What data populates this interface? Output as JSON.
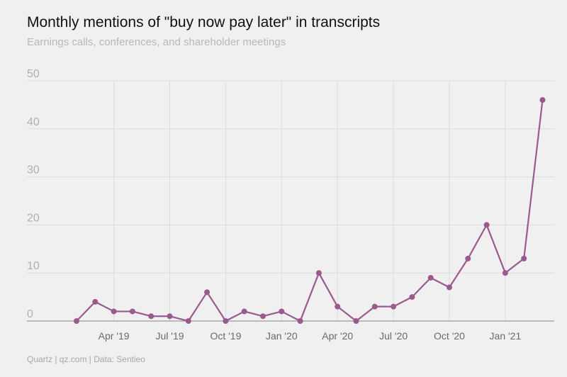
{
  "header": {
    "title": "Monthly mentions of \"buy now pay later\" in transcripts",
    "subtitle": "Earnings calls, conferences, and shareholder meetings"
  },
  "footer": {
    "credit": "Quartz | qz.com | Data: Sentieo"
  },
  "colors": {
    "line": "#9b5a8e",
    "grid": "#dcdcdc",
    "axis": "#999999",
    "background": "#f0f0f0"
  },
  "chart_data": {
    "type": "line",
    "title": "Monthly mentions of \"buy now pay later\" in transcripts",
    "subtitle": "Earnings calls, conferences, and shareholder meetings",
    "xlabel": "",
    "ylabel": "",
    "ylim": [
      0,
      50
    ],
    "yticks": [
      0,
      10,
      20,
      30,
      40,
      50
    ],
    "grid": true,
    "x": [
      "2019-02",
      "2019-03",
      "2019-04",
      "2019-05",
      "2019-06",
      "2019-07",
      "2019-08",
      "2019-09",
      "2019-10",
      "2019-11",
      "2019-12",
      "2020-01",
      "2020-02",
      "2020-03",
      "2020-04",
      "2020-05",
      "2020-06",
      "2020-07",
      "2020-08",
      "2020-09",
      "2020-10",
      "2020-11",
      "2020-12",
      "2021-01",
      "2021-02",
      "2021-03"
    ],
    "xtick_labels": [
      {
        "x": "2019-04",
        "label": "Apr '19"
      },
      {
        "x": "2019-07",
        "label": "Jul '19"
      },
      {
        "x": "2019-10",
        "label": "Oct '19"
      },
      {
        "x": "2020-01",
        "label": "Jan '20"
      },
      {
        "x": "2020-04",
        "label": "Apr '20"
      },
      {
        "x": "2020-07",
        "label": "Jul '20"
      },
      {
        "x": "2020-10",
        "label": "Oct '20"
      },
      {
        "x": "2021-01",
        "label": "Jan '21"
      }
    ],
    "series": [
      {
        "values": [
          0,
          4,
          2,
          2,
          1,
          1,
          0,
          6,
          0,
          2,
          1,
          2,
          0,
          10,
          3,
          0,
          3,
          3,
          5,
          9,
          7,
          13,
          20,
          10,
          13,
          46
        ]
      }
    ]
  }
}
